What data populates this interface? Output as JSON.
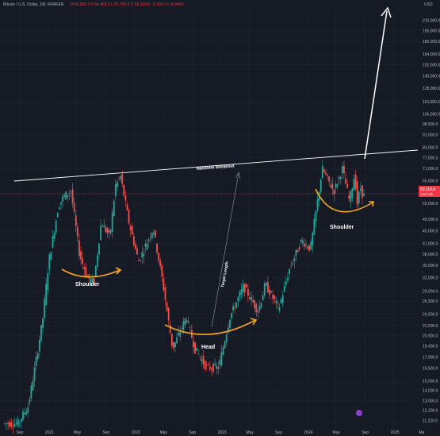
{
  "header": {
    "symbol": "Bitcoin / U.S. Dollar, 1W, KRAKEN",
    "ohlc": "O 64,289.1  H 64,455.5  L 57,755.0  C 59,119.8  −5,166.3 (−8.04%)"
  },
  "price_tag": {
    "value": "59,119.8",
    "sub": "12d 14h"
  },
  "colors": {
    "background": "#161a25",
    "up": "#26a69a",
    "down": "#ef5350",
    "neckline": "#ffffff",
    "curve": "#f5a623",
    "target": "#9598a1",
    "price_line": "#f23645"
  },
  "chart_data": {
    "type": "candlestick",
    "y_scale": "log",
    "ylabel": "USD",
    "ylim": [
      10700,
      225000
    ],
    "y_ticks": [
      "210,000.0",
      "195,000.0",
      "180,000.0",
      "164,000.0",
      "152,000.0",
      "140,000.0",
      "128,000.0",
      "116,000.0",
      "106,000.0",
      "98,500.0",
      "91,000.0",
      "83,000.0",
      "77,000.0",
      "71,000.0",
      "65,000.0",
      "59,119.8",
      "55,000.0",
      "49,000.0",
      "45,000.0",
      "41,000.0",
      "38,000.0",
      "35,000.0",
      "32,000.0",
      "29,000.0",
      "26,900.0",
      "24,500.0",
      "22,500.0",
      "20,900.0",
      "19,400.0",
      "17,900.0",
      "16,500.0",
      "15,000.0",
      "14,000.0",
      "13,000.0",
      "12,100.0",
      "11,220.0"
    ],
    "x_ticks": [
      "Sep",
      "2021",
      "May",
      "Sep",
      "2022",
      "May",
      "Sep",
      "2023",
      "May",
      "Sep",
      "2024",
      "May",
      "Sep",
      "2025",
      "Ma"
    ],
    "price_path": [
      [
        "2020-07-01",
        11000
      ],
      [
        "2020-09-01",
        11000
      ],
      [
        "2020-10-15",
        12500
      ],
      [
        "2020-11-15",
        17000
      ],
      [
        "2020-12-15",
        23500
      ],
      [
        "2021-01-10",
        36000
      ],
      [
        "2021-02-20",
        54000
      ],
      [
        "2021-03-15",
        58000
      ],
      [
        "2021-04-14",
        60500
      ],
      [
        "2021-05-20",
        38000
      ],
      [
        "2021-06-22",
        32000
      ],
      [
        "2021-07-20",
        31000
      ],
      [
        "2021-08-20",
        48000
      ],
      [
        "2021-09-25",
        43000
      ],
      [
        "2021-10-20",
        63000
      ],
      [
        "2021-11-10",
        67000
      ],
      [
        "2021-12-15",
        48000
      ],
      [
        "2022-01-25",
        36000
      ],
      [
        "2022-03-28",
        46000
      ],
      [
        "2022-05-10",
        30000
      ],
      [
        "2022-06-18",
        19000
      ],
      [
        "2022-08-15",
        24000
      ],
      [
        "2022-09-20",
        19000
      ],
      [
        "2022-11-10",
        16500
      ],
      [
        "2022-12-30",
        16600
      ],
      [
        "2023-02-15",
        24000
      ],
      [
        "2023-04-14",
        30000
      ],
      [
        "2023-06-15",
        25000
      ],
      [
        "2023-07-15",
        30500
      ],
      [
        "2023-09-10",
        25500
      ],
      [
        "2023-10-25",
        34000
      ],
      [
        "2023-12-15",
        42000
      ],
      [
        "2024-01-22",
        39500
      ],
      [
        "2024-03-12",
        71000
      ],
      [
        "2024-04-30",
        60000
      ],
      [
        "2024-06-05",
        71000
      ],
      [
        "2024-07-05",
        56000
      ],
      [
        "2024-07-28",
        69000
      ],
      [
        "2024-08-05",
        54000
      ],
      [
        "2024-08-20",
        62000
      ],
      [
        "2024-08-28",
        59119.8
      ]
    ],
    "annotations": {
      "neckline_label": "Neckline Breakout",
      "left_shoulder": "Shoulder",
      "head": "Head",
      "right_shoulder": "Shoulder",
      "target_label": "Target Length"
    }
  }
}
